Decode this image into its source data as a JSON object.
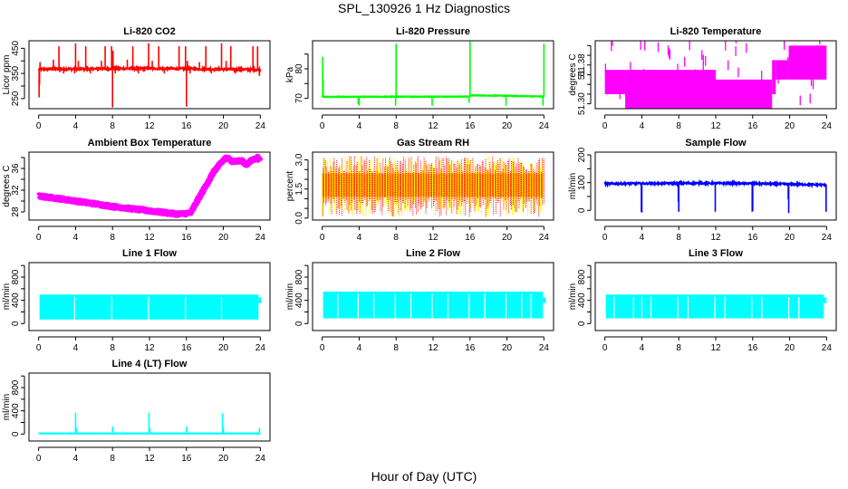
{
  "figure": {
    "title": "SPL_130926  1 Hz Diagnostics",
    "xlabel": "Hour of Day (UTC)"
  },
  "chart_data": [
    {
      "type": "line",
      "title": "Li-820 CO2",
      "ylabel": "Licor ppm",
      "color": "#ff0000",
      "style": "spiky",
      "xlim": [
        0,
        24
      ],
      "ylim": [
        210,
        480
      ],
      "xticks": [
        0,
        4,
        8,
        12,
        16,
        20,
        24
      ],
      "yticks": [
        250,
        300,
        350,
        400,
        450
      ],
      "ytick_labels": [
        "250",
        "",
        "350",
        "",
        "450"
      ],
      "baseline": [
        [
          0,
          367
        ],
        [
          12,
          370
        ],
        [
          24,
          365
        ]
      ],
      "noise": 4,
      "spikes": [
        [
          0.05,
          255
        ],
        [
          0.1,
          305
        ],
        [
          0.15,
          395
        ],
        [
          1.6,
          405
        ],
        [
          2.2,
          458
        ],
        [
          2.7,
          350
        ],
        [
          3.9,
          350
        ],
        [
          4.0,
          470
        ],
        [
          4.3,
          400
        ],
        [
          5.1,
          458
        ],
        [
          5.6,
          350
        ],
        [
          6.8,
          400
        ],
        [
          7.2,
          458
        ],
        [
          7.9,
          458
        ],
        [
          8.0,
          215
        ],
        [
          8.05,
          440
        ],
        [
          8.3,
          350
        ],
        [
          9.6,
          405
        ],
        [
          10.2,
          458
        ],
        [
          10.8,
          350
        ],
        [
          11.9,
          470
        ],
        [
          12.3,
          400
        ],
        [
          13.0,
          458
        ],
        [
          13.6,
          350
        ],
        [
          15.2,
          458
        ],
        [
          15.9,
          458
        ],
        [
          16.0,
          218
        ],
        [
          16.1,
          400
        ],
        [
          16.4,
          350
        ],
        [
          17.4,
          395
        ],
        [
          18.1,
          458
        ],
        [
          18.7,
          350
        ],
        [
          19.8,
          470
        ],
        [
          20.3,
          400
        ],
        [
          20.8,
          458
        ],
        [
          21.3,
          350
        ],
        [
          23.2,
          458
        ],
        [
          23.7,
          458
        ],
        [
          23.9,
          340
        ]
      ]
    },
    {
      "type": "line",
      "title": "Li-820 Pressure",
      "ylabel": "kPa",
      "color": "#00ff00",
      "style": "spiky",
      "xlim": [
        0,
        24
      ],
      "ylim": [
        66.5,
        89.5
      ],
      "xticks": [
        0,
        4,
        8,
        12,
        16,
        20,
        24
      ],
      "yticks": [
        70,
        75,
        80,
        85
      ],
      "ytick_labels": [
        "70",
        "",
        "80",
        ""
      ],
      "baseline": [
        [
          0,
          70.5
        ],
        [
          16,
          70.6
        ],
        [
          16.05,
          71.0
        ],
        [
          19.5,
          70.9
        ],
        [
          24,
          70.6
        ]
      ],
      "noise": 0.1,
      "spikes": [
        [
          0.05,
          84
        ],
        [
          0.1,
          76.5
        ],
        [
          3.9,
          68
        ],
        [
          4.0,
          67.5
        ],
        [
          7.95,
          67.5
        ],
        [
          8.0,
          88.5
        ],
        [
          11.9,
          67.5
        ],
        [
          15.9,
          68.5
        ],
        [
          16.0,
          89.3
        ],
        [
          19.9,
          67.5
        ],
        [
          23.9,
          67.5
        ],
        [
          24.0,
          88.5
        ]
      ]
    },
    {
      "type": "line",
      "title": "Li-820 Temperature",
      "ylabel": "degrees C",
      "color": "#ff00ff",
      "style": "band",
      "xlim": [
        0,
        24
      ],
      "ylim": [
        51.29,
        51.43
      ],
      "xticks": [
        0,
        4,
        8,
        12,
        16,
        20,
        24
      ],
      "yticks": [
        51.3,
        51.32,
        51.34,
        51.36,
        51.38,
        51.4,
        51.42
      ],
      "ytick_labels": [
        "51.30",
        "",
        "",
        "51",
        "51.38",
        "",
        ""
      ],
      "bands": [
        [
          0,
          51.32,
          51.37
        ],
        [
          2.2,
          51.29,
          51.37
        ],
        [
          12,
          51.29,
          51.35
        ],
        [
          18.1,
          51.32,
          51.39
        ],
        [
          18.5,
          51.35,
          51.39
        ],
        [
          19.9,
          51.35,
          51.42
        ],
        [
          24,
          51.35,
          51.42
        ]
      ]
    },
    {
      "type": "line",
      "title": "Ambient Box Temperature",
      "ylabel": "degrees C",
      "color": "#ff00ff",
      "style": "thick",
      "xlim": [
        0,
        24
      ],
      "ylim": [
        26.5,
        39
      ],
      "xticks": [
        0,
        4,
        8,
        12,
        16,
        20,
        24
      ],
      "yticks": [
        28,
        30,
        32,
        34,
        36,
        38
      ],
      "ytick_labels": [
        "28",
        "",
        "32",
        "",
        "36",
        ""
      ],
      "x": [
        0,
        2,
        4,
        6,
        8,
        10,
        12,
        14,
        15,
        16,
        16.5,
        17,
        18,
        19,
        20,
        20.3,
        21,
        22,
        22.5,
        23,
        23.7,
        24
      ],
      "y": [
        30.9,
        30.5,
        30.0,
        29.5,
        29.0,
        28.6,
        28.2,
        27.8,
        27.6,
        27.7,
        27.9,
        29.5,
        32.5,
        35.5,
        37.5,
        38.0,
        37.3,
        37.4,
        36.7,
        37.4,
        38.0,
        37.4
      ],
      "noise": 0.35
    },
    {
      "type": "line",
      "title": "Gas Stream RH",
      "ylabel": "percent",
      "color": "#ff0000",
      "color2": "#ffff00",
      "style": "noisy",
      "xlim": [
        0,
        24
      ],
      "ylim": [
        -0.1,
        3.4
      ],
      "xticks": [
        0,
        4,
        8,
        12,
        16,
        20,
        24
      ],
      "yticks": [
        0.0,
        0.5,
        1.0,
        1.5,
        2.0,
        2.5,
        3.0
      ],
      "ytick_labels": [
        "0.0",
        "",
        "",
        "1.5",
        "",
        "",
        "3.0"
      ],
      "center": 1.7,
      "core": [
        1.1,
        2.3
      ],
      "range": [
        0.05,
        3.2
      ]
    },
    {
      "type": "line",
      "title": "Sample Flow",
      "ylabel": "ml/min",
      "color": "#0000ff",
      "style": "spiky",
      "xlim": [
        0,
        24
      ],
      "ylim": [
        -35,
        210
      ],
      "xticks": [
        0,
        4,
        8,
        12,
        16,
        20,
        24
      ],
      "yticks": [
        0,
        50,
        100,
        150,
        200
      ],
      "ytick_labels": [
        "0",
        "",
        "100",
        "",
        "200"
      ],
      "baseline": [
        [
          0,
          96
        ],
        [
          10,
          98
        ],
        [
          16,
          97
        ],
        [
          19,
          95
        ],
        [
          24,
          92
        ]
      ],
      "noise": 3,
      "spikes": [
        [
          3.95,
          -5
        ],
        [
          4.0,
          -8
        ],
        [
          7.95,
          30
        ],
        [
          8.0,
          -5
        ],
        [
          11.95,
          -5
        ],
        [
          15.95,
          -5
        ],
        [
          16.0,
          -2
        ],
        [
          19.85,
          40
        ],
        [
          19.9,
          -10
        ],
        [
          23.95,
          -5
        ]
      ]
    },
    {
      "type": "line",
      "title": "Line 1 Flow",
      "ylabel": "ml/min",
      "color": "#00ffff",
      "style": "block",
      "xlim": [
        0,
        24
      ],
      "ylim": [
        -120,
        1050
      ],
      "xticks": [
        0,
        4,
        8,
        12,
        16,
        20,
        24
      ],
      "yticks": [
        0,
        200,
        400,
        600,
        800,
        1000
      ],
      "ytick_labels": [
        "0",
        "",
        "400",
        "",
        "800",
        ""
      ],
      "low": 70,
      "high": 500,
      "gaps": [
        3.9,
        7.9,
        11.9,
        15.9,
        19.8
      ],
      "end": 23.8
    },
    {
      "type": "line",
      "title": "Line 2 Flow",
      "ylabel": "ml/min",
      "color": "#00ffff",
      "style": "block",
      "xlim": [
        0,
        24
      ],
      "ylim": [
        -120,
        1050
      ],
      "xticks": [
        0,
        4,
        8,
        12,
        16,
        20,
        24
      ],
      "yticks": [
        0,
        200,
        400,
        600,
        800,
        1000
      ],
      "ytick_labels": [
        "0",
        "",
        "400",
        "",
        "800",
        ""
      ],
      "low": 90,
      "high": 550,
      "gaps": [
        1.7,
        3.9,
        5.6,
        7.9,
        9.6,
        11.9,
        13.6,
        15.9,
        17.6,
        19.9,
        21.6,
        22.6
      ],
      "end": 23.9
    },
    {
      "type": "line",
      "title": "Line 3 Flow",
      "ylabel": "ml/min",
      "color": "#00ffff",
      "style": "block",
      "xlim": [
        0,
        24
      ],
      "ylim": [
        -120,
        1050
      ],
      "xticks": [
        0,
        4,
        8,
        12,
        16,
        20,
        24
      ],
      "yticks": [
        0,
        200,
        400,
        600,
        800,
        1000
      ],
      "ytick_labels": [
        "0",
        "",
        "400",
        "",
        "800",
        ""
      ],
      "low": 90,
      "high": 500,
      "gaps": [
        1.0,
        3.1,
        4.0,
        5.0,
        7.9,
        9.0,
        11.9,
        13.0,
        15.9,
        17.0,
        19.9,
        21.0
      ],
      "end": 23.7
    },
    {
      "type": "line",
      "title": "Line 4 (LT) Flow",
      "ylabel": "ml/min",
      "color": "#00ffff",
      "style": "spiky",
      "xlim": [
        0,
        24
      ],
      "ylim": [
        -120,
        1050
      ],
      "xticks": [
        0,
        4,
        8,
        12,
        16,
        20,
        24
      ],
      "yticks": [
        0,
        200,
        400,
        600,
        800,
        1000
      ],
      "ytick_labels": [
        "0",
        "",
        "400",
        "",
        "800",
        ""
      ],
      "baseline": [
        [
          0,
          10
        ],
        [
          24,
          10
        ]
      ],
      "noise": 2,
      "spikes": [
        [
          4.0,
          370
        ],
        [
          4.1,
          110
        ],
        [
          8.0,
          130
        ],
        [
          11.95,
          370
        ],
        [
          12.05,
          110
        ],
        [
          16.0,
          130
        ],
        [
          19.9,
          360
        ],
        [
          20.0,
          110
        ],
        [
          23.9,
          110
        ]
      ]
    }
  ]
}
